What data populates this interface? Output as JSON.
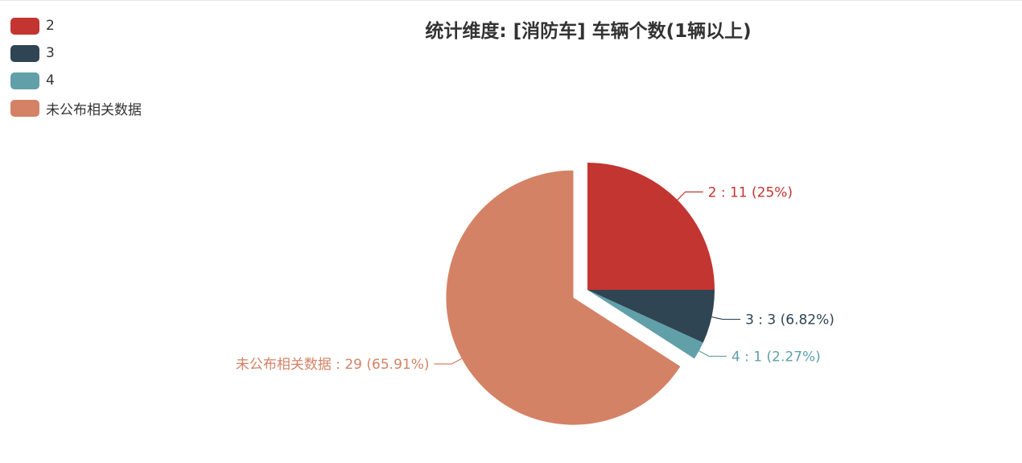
{
  "chart_data": {
    "type": "pie",
    "title": "统计维度: [消防车] 车辆个数(1辆以上)",
    "legend_position": "top-left",
    "slices": [
      {
        "name": "2",
        "value": 11,
        "percent": "25%",
        "color": "#c23531",
        "label": "2 : 11 (25%)"
      },
      {
        "name": "3",
        "value": 3,
        "percent": "6.82%",
        "color": "#2f4554",
        "label": "3 : 3 (6.82%)"
      },
      {
        "name": "4",
        "value": 1,
        "percent": "2.27%",
        "color": "#61a0a8",
        "label": "4 : 1 (2.27%)"
      },
      {
        "name": "未公布相关数据",
        "value": 29,
        "percent": "65.91%",
        "color": "#d48265",
        "label": "未公布相关数据 : 29 (65.91%)",
        "exploded": true
      }
    ]
  }
}
